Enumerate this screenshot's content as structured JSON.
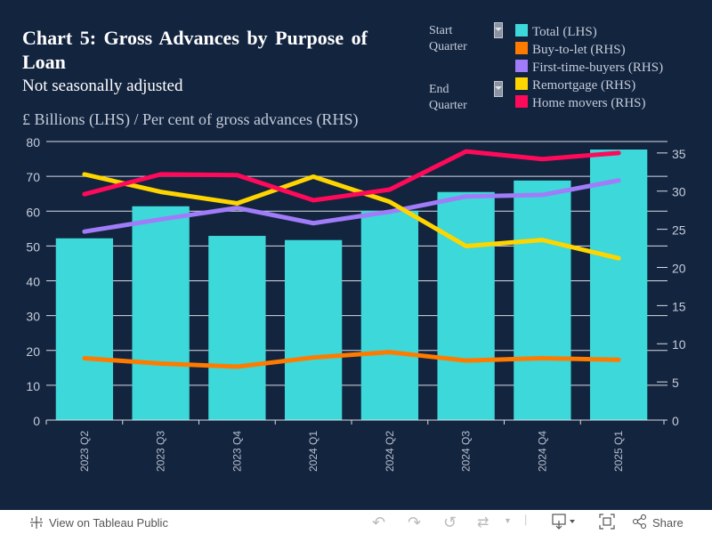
{
  "header": {
    "title": "Chart 5: Gross Advances by Purpose of Loan",
    "subtitle": "Not seasonally adjusted",
    "unit_label": "£ Billions (LHS) / Per cent of gross advances (RHS)"
  },
  "filters": {
    "start_label_1": "Start",
    "start_label_2": "Quarter",
    "end_label_1": "End",
    "end_label_2": "Quarter"
  },
  "legend": [
    {
      "label": "Total (LHS)",
      "color": "#3dd8d9"
    },
    {
      "label": "Buy-to-let (RHS)",
      "color": "#ff7b00"
    },
    {
      "label": "First-time-buyers (RHS)",
      "color": "#a07cf9"
    },
    {
      "label": "Remortgage (RHS)",
      "color": "#ffd500"
    },
    {
      "label": "Home movers (RHS)",
      "color": "#ff0a5a"
    }
  ],
  "chart_data": {
    "type": "bar",
    "title": "Chart 5: Gross Advances by Purpose of Loan",
    "subtitle": "Not seasonally adjusted",
    "ylabel": "£ Billions (LHS) / Per cent of gross advances (RHS)",
    "categories": [
      "2023 Q2",
      "2023 Q3",
      "2023 Q4",
      "2024 Q1",
      "2024 Q2",
      "2024 Q3",
      "2024 Q4",
      "2025 Q1"
    ],
    "y_left": {
      "ticks": [
        0,
        10,
        20,
        30,
        40,
        50,
        60,
        70,
        80
      ],
      "range": [
        0,
        80
      ]
    },
    "y_right": {
      "ticks": [
        0,
        5,
        10,
        15,
        20,
        25,
        30,
        35
      ],
      "range": [
        0,
        36.5
      ]
    },
    "grid": true,
    "legend_position": "top-right",
    "series": [
      {
        "name": "Total (LHS)",
        "type": "bar",
        "axis": "left",
        "color": "#3dd8d9",
        "values": [
          52.2,
          61.4,
          52.9,
          51.7,
          60.1,
          65.5,
          68.8,
          77.7
        ]
      },
      {
        "name": "Buy-to-let (RHS)",
        "type": "line",
        "axis": "right",
        "color": "#ff7b00",
        "values": [
          8.1,
          7.4,
          7.0,
          8.2,
          8.9,
          7.8,
          8.1,
          7.9
        ]
      },
      {
        "name": "First-time-buyers (RHS)",
        "type": "line",
        "axis": "right",
        "color": "#a07cf9",
        "values": [
          24.7,
          26.3,
          27.8,
          25.8,
          27.3,
          29.3,
          29.5,
          31.4
        ]
      },
      {
        "name": "Remortgage (RHS)",
        "type": "line",
        "axis": "right",
        "color": "#ffd500",
        "values": [
          32.2,
          29.9,
          28.4,
          31.9,
          28.6,
          22.8,
          23.6,
          21.2
        ]
      },
      {
        "name": "Home movers (RHS)",
        "type": "line",
        "axis": "right",
        "color": "#ff0a5a",
        "values": [
          29.6,
          32.2,
          32.1,
          28.8,
          30.2,
          35.2,
          34.2,
          35.0
        ]
      }
    ]
  },
  "footer": {
    "view_label": "View on Tableau Public",
    "share_label": "Share"
  }
}
